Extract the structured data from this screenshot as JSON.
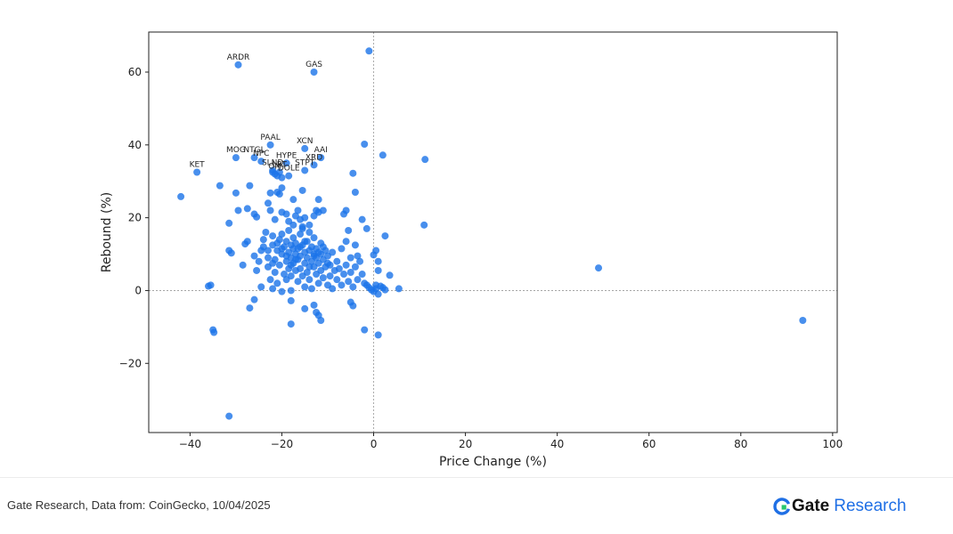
{
  "chart_data": {
    "type": "scatter",
    "title": "",
    "xlabel": "Price Change (%)",
    "ylabel": "Rebound (%)",
    "xlim": [
      -49,
      101
    ],
    "ylim": [
      -39,
      71
    ],
    "xticks": [
      -40,
      -20,
      0,
      20,
      40,
      60,
      80,
      100
    ],
    "yticks": [
      -20,
      0,
      20,
      40,
      60
    ],
    "reference_lines": {
      "x": 0,
      "y": 0
    },
    "grid": false,
    "point_color": "#1a73e8",
    "labeled_points": [
      {
        "label": "ARDR",
        "x": -29.5,
        "y": 62.0
      },
      {
        "label": "GAS",
        "x": -13.0,
        "y": 60.0
      },
      {
        "label": "PAAL",
        "x": -22.5,
        "y": 40.0
      },
      {
        "label": "XCN",
        "x": -15.0,
        "y": 39.0
      },
      {
        "label": "AAI",
        "x": -11.5,
        "y": 36.5
      },
      {
        "label": "MOG",
        "x": -30.0,
        "y": 36.5
      },
      {
        "label": "NTGL",
        "x": -26.0,
        "y": 36.5
      },
      {
        "label": "NPC",
        "x": -24.5,
        "y": 35.5
      },
      {
        "label": "HYPE",
        "x": -19.0,
        "y": 35.0
      },
      {
        "label": "XRD",
        "x": -13.0,
        "y": 34.5
      },
      {
        "label": "STPT",
        "x": -15.0,
        "y": 33.0
      },
      {
        "label": "KET",
        "x": -38.5,
        "y": 32.5
      },
      {
        "label": "SLND",
        "x": -22.0,
        "y": 33.0
      },
      {
        "label": "LRT",
        "x": -20.5,
        "y": 32.5
      },
      {
        "label": "OM",
        "x": -21.5,
        "y": 32.0
      },
      {
        "label": "DOLE",
        "x": -18.5,
        "y": 31.5
      }
    ],
    "points": [
      [
        -1.0,
        65.8
      ],
      [
        -2.0,
        40.2
      ],
      [
        2.0,
        37.2
      ],
      [
        11.2,
        36.0
      ],
      [
        11.0,
        18.0
      ],
      [
        49.0,
        6.2
      ],
      [
        93.5,
        -8.2
      ],
      [
        -42.0,
        25.8
      ],
      [
        -33.5,
        28.8
      ],
      [
        -30.0,
        26.8
      ],
      [
        -31.5,
        18.5
      ],
      [
        -29.5,
        22.0
      ],
      [
        -27.0,
        28.8
      ],
      [
        -27.5,
        22.5
      ],
      [
        -26.0,
        21.0
      ],
      [
        -25.5,
        20.2
      ],
      [
        -23.0,
        24.0
      ],
      [
        -22.5,
        26.8
      ],
      [
        -21.0,
        27.0
      ],
      [
        -20.0,
        28.2
      ],
      [
        -20.5,
        26.5
      ],
      [
        -17.5,
        25.0
      ],
      [
        -15.5,
        27.5
      ],
      [
        -12.0,
        25.0
      ],
      [
        -12.5,
        22.0
      ],
      [
        -4.5,
        32.2
      ],
      [
        -4.0,
        27.0
      ],
      [
        -6.0,
        22.0
      ],
      [
        -6.5,
        21.0
      ],
      [
        -2.5,
        19.5
      ],
      [
        -1.5,
        17.0
      ],
      [
        2.5,
        15.0
      ],
      [
        -35.5,
        1.5
      ],
      [
        -36.0,
        1.2
      ],
      [
        -35.0,
        -10.8
      ],
      [
        -34.8,
        -11.5
      ],
      [
        -31.5,
        -34.5
      ],
      [
        -31.5,
        11.0
      ],
      [
        -31.0,
        10.3
      ],
      [
        -28.5,
        7.0
      ],
      [
        -27.0,
        -4.8
      ],
      [
        -26.0,
        -2.5
      ],
      [
        -24.5,
        1.0
      ],
      [
        -22.0,
        0.5
      ],
      [
        -20.0,
        -0.3
      ],
      [
        -18.0,
        0.0
      ],
      [
        -18.0,
        -2.8
      ],
      [
        -18.0,
        -9.2
      ],
      [
        -15.0,
        -5.0
      ],
      [
        -13.0,
        -4.0
      ],
      [
        -12.5,
        -6.0
      ],
      [
        -12.0,
        -6.8
      ],
      [
        -11.5,
        -8.2
      ],
      [
        -5.0,
        -3.2
      ],
      [
        -4.5,
        -4.2
      ],
      [
        -2.0,
        -10.8
      ],
      [
        1.0,
        -12.2
      ],
      [
        -3.5,
        9.5
      ],
      [
        -3.0,
        8.0
      ],
      [
        -2.5,
        4.5
      ],
      [
        -2.0,
        2.0
      ],
      [
        -1.5,
        1.5
      ],
      [
        -1.0,
        0.8
      ],
      [
        -0.5,
        0.2
      ],
      [
        0.0,
        -0.3
      ],
      [
        0.5,
        0.5
      ],
      [
        1.0,
        -1.0
      ],
      [
        1.5,
        1.2
      ],
      [
        2.0,
        0.8
      ],
      [
        2.5,
        0.2
      ],
      [
        3.5,
        4.2
      ],
      [
        5.5,
        0.5
      ],
      [
        0.0,
        9.8
      ],
      [
        0.5,
        11.0
      ],
      [
        1.0,
        8.0
      ],
      [
        1.0,
        5.5
      ],
      [
        0.5,
        1.5
      ],
      [
        -28.0,
        12.8
      ],
      [
        -27.5,
        13.5
      ],
      [
        -26.0,
        9.5
      ],
      [
        -25.5,
        5.5
      ],
      [
        -24.5,
        11.0
      ],
      [
        -24.0,
        14.0
      ],
      [
        -23.5,
        16.0
      ],
      [
        -23.0,
        9.0
      ],
      [
        -23.0,
        6.5
      ],
      [
        -22.5,
        3.0
      ],
      [
        -22.0,
        12.5
      ],
      [
        -22.0,
        15.0
      ],
      [
        -21.5,
        8.5
      ],
      [
        -21.5,
        5.0
      ],
      [
        -21.0,
        11.0
      ],
      [
        -21.0,
        2.0
      ],
      [
        -20.5,
        14.0
      ],
      [
        -20.5,
        7.0
      ],
      [
        -20.0,
        10.0
      ],
      [
        -20.0,
        15.5
      ],
      [
        -19.5,
        4.5
      ],
      [
        -19.5,
        12.0
      ],
      [
        -19.0,
        8.0
      ],
      [
        -19.0,
        13.5
      ],
      [
        -19.0,
        3.0
      ],
      [
        -18.5,
        10.5
      ],
      [
        -18.5,
        6.0
      ],
      [
        -18.5,
        16.5
      ],
      [
        -18.0,
        12.5
      ],
      [
        -18.0,
        9.0
      ],
      [
        -18.0,
        4.0
      ],
      [
        -17.5,
        11.5
      ],
      [
        -17.5,
        7.5
      ],
      [
        -17.5,
        14.5
      ],
      [
        -17.0,
        10.0
      ],
      [
        -17.0,
        5.5
      ],
      [
        -17.0,
        13.0
      ],
      [
        -16.5,
        8.5
      ],
      [
        -16.5,
        2.5
      ],
      [
        -16.5,
        11.5
      ],
      [
        -16.0,
        15.5
      ],
      [
        -16.0,
        9.5
      ],
      [
        -16.0,
        6.0
      ],
      [
        -15.5,
        12.5
      ],
      [
        -15.5,
        4.0
      ],
      [
        -15.5,
        17.5
      ],
      [
        -15.0,
        10.5
      ],
      [
        -15.0,
        7.5
      ],
      [
        -15.0,
        1.0
      ],
      [
        -14.5,
        13.5
      ],
      [
        -14.5,
        9.0
      ],
      [
        -14.5,
        5.0
      ],
      [
        -14.0,
        11.0
      ],
      [
        -14.0,
        16.0
      ],
      [
        -14.0,
        3.0
      ],
      [
        -13.5,
        8.0
      ],
      [
        -13.5,
        12.0
      ],
      [
        -13.5,
        0.5
      ],
      [
        -13.0,
        10.0
      ],
      [
        -13.0,
        6.5
      ],
      [
        -13.0,
        14.5
      ],
      [
        -12.5,
        9.0
      ],
      [
        -12.5,
        4.5
      ],
      [
        -12.5,
        11.5
      ],
      [
        -12.0,
        7.5
      ],
      [
        -12.0,
        2.0
      ],
      [
        -11.5,
        10.0
      ],
      [
        -11.5,
        5.5
      ],
      [
        -11.5,
        13.0
      ],
      [
        -11.0,
        8.5
      ],
      [
        -11.0,
        3.5
      ],
      [
        -10.5,
        6.5
      ],
      [
        -10.5,
        11.0
      ],
      [
        -10.0,
        9.5
      ],
      [
        -10.0,
        1.5
      ],
      [
        -9.5,
        7.0
      ],
      [
        -9.5,
        4.0
      ],
      [
        -9.0,
        10.5
      ],
      [
        -9.0,
        0.5
      ],
      [
        -8.5,
        5.5
      ],
      [
        -8.0,
        8.0
      ],
      [
        -8.0,
        3.0
      ],
      [
        -7.5,
        6.0
      ],
      [
        -7.0,
        11.5
      ],
      [
        -7.0,
        1.5
      ],
      [
        -6.5,
        4.5
      ],
      [
        -6.0,
        7.0
      ],
      [
        -6.0,
        13.5
      ],
      [
        -5.5,
        2.5
      ],
      [
        -5.5,
        16.5
      ],
      [
        -5.0,
        9.0
      ],
      [
        -5.0,
        5.0
      ],
      [
        -4.5,
        1.0
      ],
      [
        -4.0,
        12.5
      ],
      [
        -4.0,
        6.5
      ],
      [
        -3.5,
        3.0
      ],
      [
        -25.0,
        8.0
      ],
      [
        -24.0,
        12.0
      ],
      [
        -23.0,
        11.0
      ],
      [
        -22.0,
        7.5
      ],
      [
        -21.0,
        13.0
      ],
      [
        -20.0,
        11.5
      ],
      [
        -19.0,
        9.5
      ],
      [
        -18.0,
        7.0
      ],
      [
        -17.0,
        8.5
      ],
      [
        -16.0,
        12.0
      ],
      [
        -15.0,
        13.5
      ],
      [
        -14.0,
        6.5
      ],
      [
        -13.0,
        9.5
      ],
      [
        -12.0,
        10.5
      ],
      [
        -11.0,
        12.0
      ],
      [
        -10.0,
        7.5
      ],
      [
        -20.0,
        21.5
      ],
      [
        -19.0,
        21.0
      ],
      [
        -17.0,
        20.5
      ],
      [
        -16.0,
        19.5
      ],
      [
        -15.0,
        20.0
      ],
      [
        -14.0,
        18.0
      ],
      [
        -13.0,
        20.5
      ],
      [
        -12.0,
        21.5
      ],
      [
        -11.0,
        22.0
      ],
      [
        -18.5,
        19.0
      ],
      [
        -17.5,
        18.0
      ],
      [
        -16.5,
        22.0
      ],
      [
        -15.5,
        17.0
      ],
      [
        -20.0,
        31.0
      ],
      [
        -21.0,
        31.5
      ],
      [
        -22.0,
        32.5
      ],
      [
        -21.5,
        19.5
      ],
      [
        -22.5,
        22.0
      ]
    ]
  },
  "footer": {
    "source_text": "Gate Research, Data from: CoinGecko, 10/04/2025",
    "brand_gate": "Gate",
    "brand_research": "Research",
    "brand_color": "#1f6fe5"
  }
}
